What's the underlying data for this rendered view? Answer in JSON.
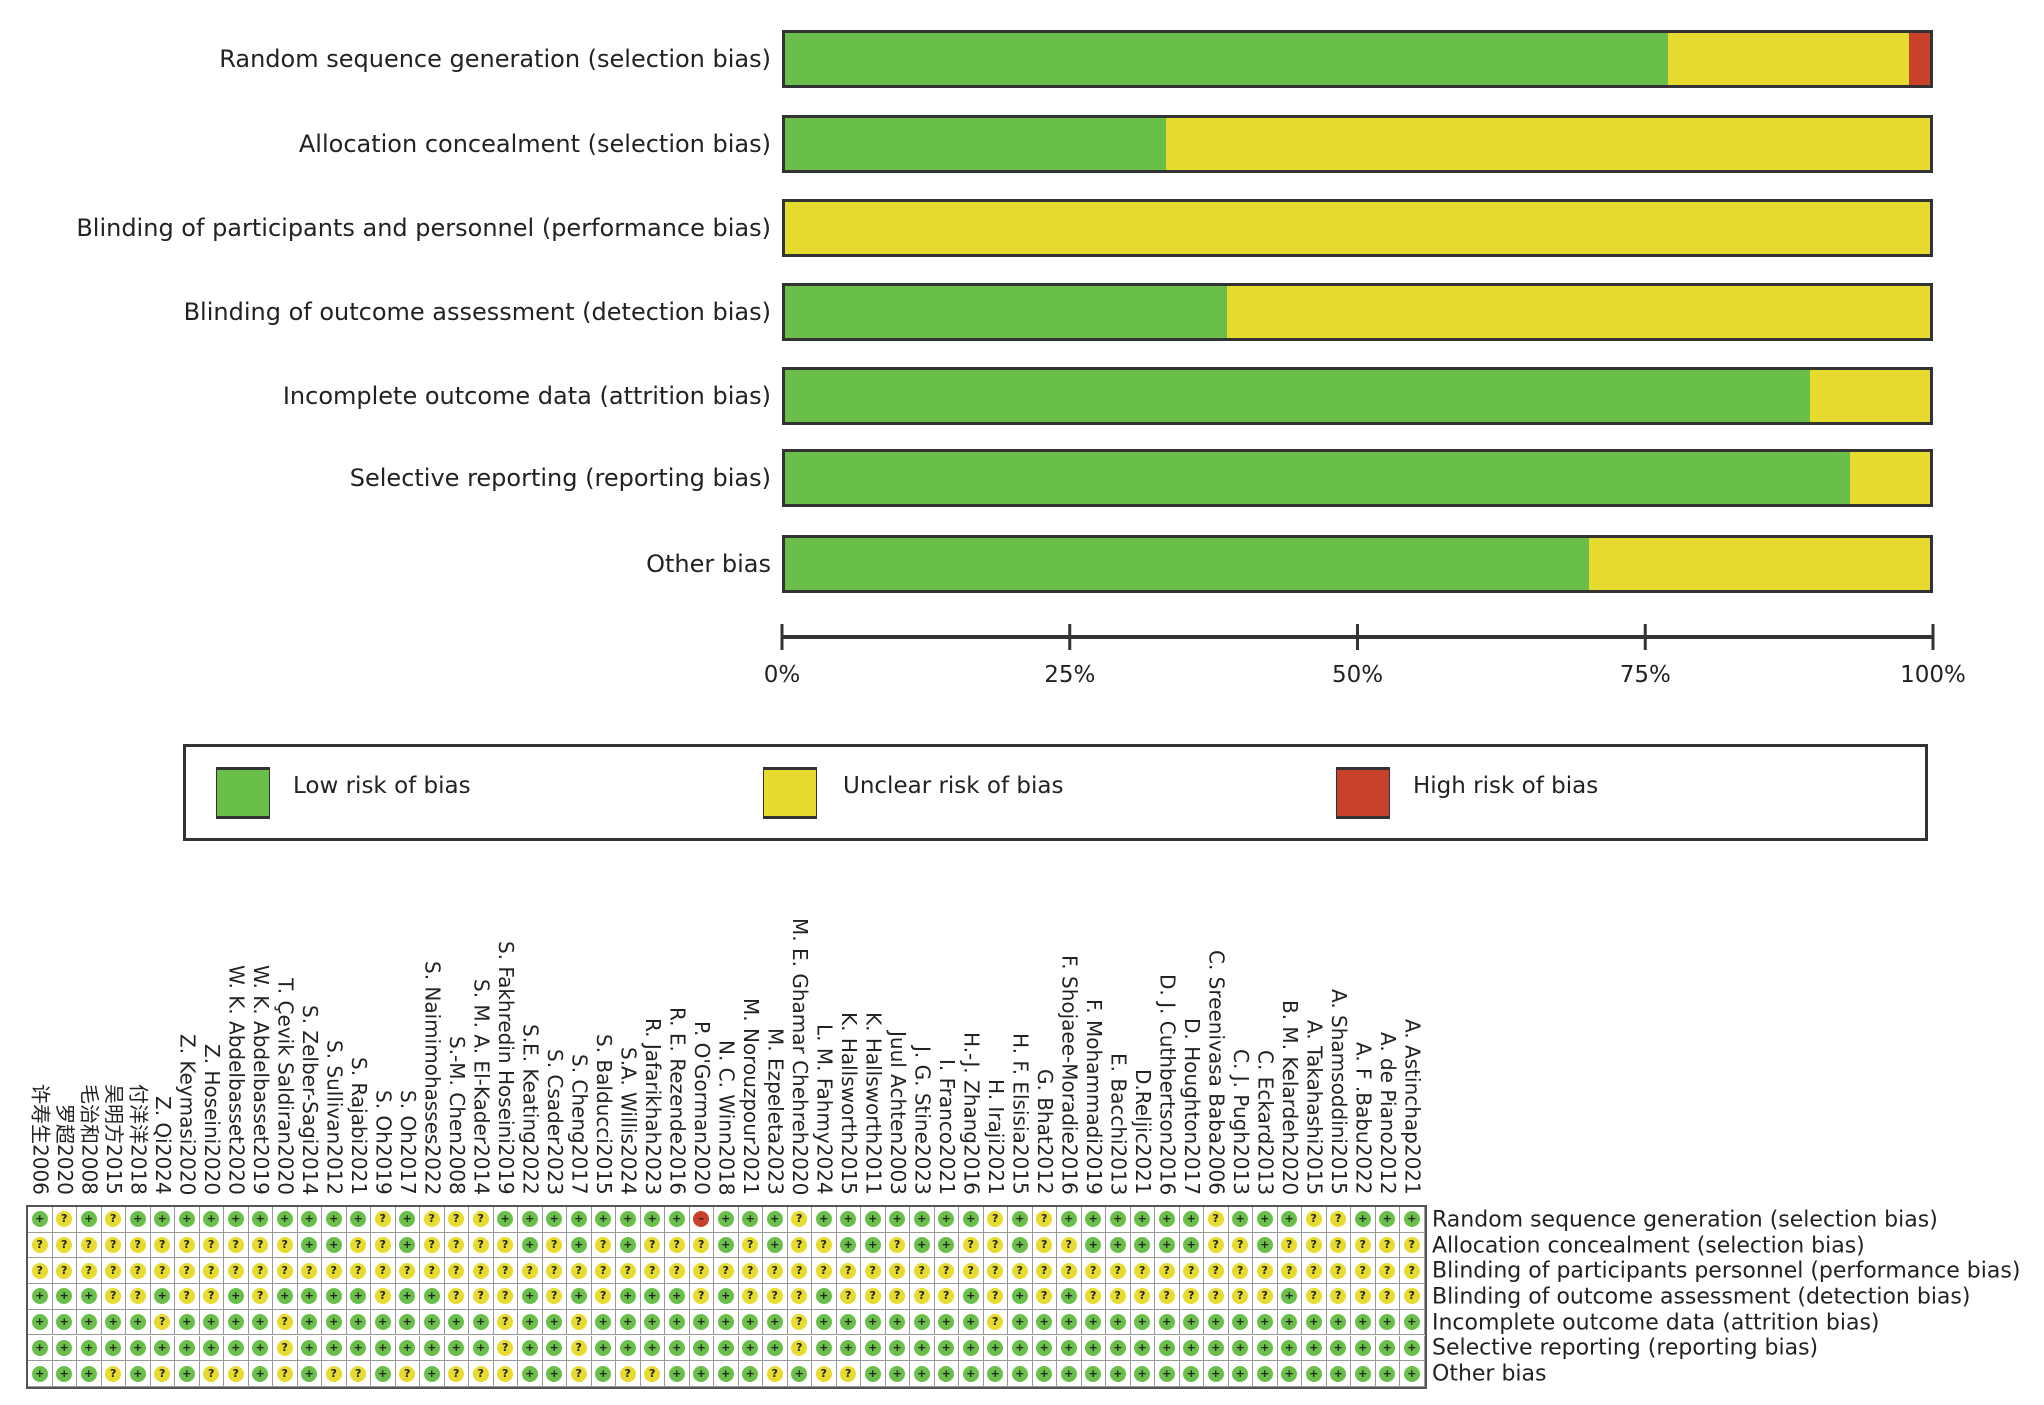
{
  "colors": {
    "low": "#6abf4b",
    "unclear": "#e6db2e",
    "high": "#c8412b"
  },
  "chart_data": [
    {
      "type": "bar",
      "orientation": "horizontal",
      "stacked": true,
      "categories": [
        "Random sequence generation (selection bias)",
        "Allocation concealment (selection bias)",
        "Blinding of participants and personnel (performance bias)",
        "Blinding of outcome assessment (detection bias)",
        "Incomplete outcome data (attrition bias)",
        "Selective reporting (reporting bias)",
        "Other bias"
      ],
      "series": [
        {
          "name": "Low risk of bias",
          "values": [
            77.2,
            33.3,
            0,
            38.6,
            89.5,
            93.0,
            70.2
          ]
        },
        {
          "name": "Unclear risk of bias",
          "values": [
            21.1,
            66.7,
            100,
            61.4,
            10.5,
            7.0,
            29.8
          ]
        },
        {
          "name": "High risk of bias",
          "values": [
            1.8,
            0,
            0,
            0,
            0,
            0,
            0
          ]
        }
      ],
      "xlim": [
        0,
        100
      ],
      "xticks": [
        "0%",
        "25%",
        "50%",
        "75%",
        "100%"
      ],
      "legend": {
        "placement": "bottom",
        "labels": [
          "Low risk of bias",
          "Unclear risk of bias",
          "High risk of bias"
        ]
      }
    },
    {
      "type": "table",
      "symbols": {
        "+": "low",
        "?": "unclear",
        "-": "high"
      },
      "studies": [
        "许寿生2006",
        "罗超2020",
        "毛治和2008",
        "吴明方2015",
        "付洋洋2018",
        "Z. Qi2024",
        "Z. Keymasi2020",
        "Z. Hoseini2020",
        "W. K. Abdelbasset2020",
        "W. K. Abdelbasset2019",
        "T. Çevik Saldiran2020",
        "S. Zelber-Sagi2014",
        "S. Sullivan2012",
        "S. Rajabi2021",
        "S. Oh2019",
        "S. Oh2017",
        "S. Naimimohasses2022",
        "S.-M. Chen2008",
        "S. M. A. El-Kader2014",
        "S. Fakhredin Hoseini2019",
        "S.E. Keating2022",
        "S. Csader2023",
        "S. Cheng2017",
        "S. Balducci2015",
        "S.A. Willis2024",
        "R. Jafarikhah2023",
        "R. E. Rezende2016",
        "P. O'Gorman2020",
        "N. C. Winn2018",
        "M. Norouzpour2021",
        "M. Ezpeleta2023",
        "M. E. Ghamar Chehreh2020",
        "L. M. Fahmy2024",
        "K. Hallsworth2015",
        "K. Hallsworth2011",
        "Juul Achten2003",
        "J. G. Stine2023",
        "I. Franco2021",
        "H.-J. Zhang2016",
        "H. Iraji2021",
        "H. F. Elsisia2015",
        "G. Bhat2012",
        "F. Shojaee-Moradie2016",
        "F. Mohammadi2019",
        "E. Bacchi2013",
        "D.Reljic2021",
        "D. J. Cuthbertson2016",
        "D. Houghton2017",
        "C. Sreenivasa Baba2006",
        "C. J. Pugh2013",
        "C. Eckard2013",
        "B. M. Kelardeh2020",
        "A. Takahashi2015",
        "A. Shamsoddini2015",
        "A. F .Babu2022",
        "A. de Piano2012",
        "A. Astinchap2021"
      ],
      "domains": [
        "Random sequence generation (selection bias)",
        "Allocation concealment (selection bias)",
        "Blinding of participants personnel (performance bias)",
        "Blinding of outcome assessment (detection bias)",
        "Incomplete outcome data (attrition bias)",
        "Selective reporting (reporting bias)",
        "Other bias"
      ],
      "judgements": [
        "+?+?++++++++++?+???++++++++-+++?+++++++?+?++++++?+++??+++",
        "???????????++??+????+?+?+???+?+??++?++??+??+++++??+??????",
        "?????????????????????????????????????????????????????????",
        "+++??+??+?++++?++???+?+?+++?+???+?????+?+?+????????+?????",
        "+++++?++++?++++++++?++?++++++++?+++++++?+++++++++++++++++",
        "++++++++++?++++++++?++?++++++++?+++++++++++++++++++++++++",
        "+++?+?+??+?+??+?+???++?+??++++?+??++++++++++++++++++++++++"
      ]
    }
  ]
}
